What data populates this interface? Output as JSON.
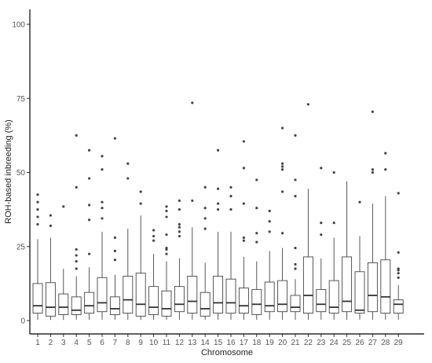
{
  "chart_data": {
    "type": "boxplot",
    "title": "",
    "xlabel": "Chromosome",
    "ylabel": "ROH-based inbreeding (%)",
    "ylim": [
      0,
      100
    ],
    "yticks": [
      0,
      25,
      50,
      75,
      100
    ],
    "grid": false,
    "colors": {
      "box_stroke": "#444444",
      "box_fill": "#ffffff",
      "median": "#333333",
      "outlier": "#444444",
      "axis": "#000000"
    },
    "categories": [
      "1",
      "2",
      "3",
      "4",
      "5",
      "6",
      "7",
      "8",
      "9",
      "10",
      "11",
      "12",
      "13",
      "14",
      "15",
      "16",
      "17",
      "18",
      "19",
      "20",
      "21",
      "22",
      "23",
      "24",
      "25",
      "26",
      "27",
      "28",
      "29"
    ],
    "boxes": [
      {
        "q1": 2.5,
        "median": 5.0,
        "q3": 12.5,
        "whisker_low": 0.3,
        "whisker_high": 27.5,
        "outliers": [
          32.5,
          35.0,
          37.5,
          40.0,
          42.5
        ]
      },
      {
        "q1": 1.5,
        "median": 4.5,
        "q3": 12.8,
        "whisker_low": 0.2,
        "whisker_high": 28.0,
        "outliers": [
          32.0,
          35.5
        ]
      },
      {
        "q1": 2.0,
        "median": 4.5,
        "q3": 9.0,
        "whisker_low": 0.2,
        "whisker_high": 17.5,
        "outliers": [
          38.5
        ]
      },
      {
        "q1": 2.0,
        "median": 3.5,
        "q3": 8.0,
        "whisker_low": 0.3,
        "whisker_high": 15.0,
        "outliers": [
          17.5,
          20.0,
          22.0,
          24.0,
          45.0,
          62.5
        ]
      },
      {
        "q1": 2.5,
        "median": 5.0,
        "q3": 9.5,
        "whisker_low": 0.3,
        "whisker_high": 18.0,
        "outliers": [
          22.5,
          34.0,
          39.0,
          48.0,
          57.5
        ]
      },
      {
        "q1": 3.0,
        "median": 6.0,
        "q3": 14.5,
        "whisker_low": 0.3,
        "whisker_high": 30.0,
        "outliers": [
          34.5,
          38.0,
          40.0,
          51.0,
          55.5
        ]
      },
      {
        "q1": 2.0,
        "median": 4.0,
        "q3": 8.0,
        "whisker_low": 0.3,
        "whisker_high": 15.5,
        "outliers": [
          20.5,
          23.5,
          28.0,
          61.5
        ]
      },
      {
        "q1": 2.5,
        "median": 7.0,
        "q3": 15.0,
        "whisker_low": 0.3,
        "whisker_high": 31.0,
        "outliers": [
          48.0,
          53.0
        ]
      },
      {
        "q1": 1.5,
        "median": 5.5,
        "q3": 16.0,
        "whisker_low": 0.2,
        "whisker_high": 35.5,
        "outliers": [
          39.5,
          43.5
        ]
      },
      {
        "q1": 2.0,
        "median": 4.5,
        "q3": 11.5,
        "whisker_low": 0.3,
        "whisker_high": 22.5,
        "outliers": [
          27.0,
          28.5,
          30.5
        ]
      },
      {
        "q1": 1.5,
        "median": 4.0,
        "q3": 10.0,
        "whisker_low": 0.3,
        "whisker_high": 20.0,
        "outliers": [
          22.5,
          24.0,
          24.5,
          29.0,
          35.0,
          37.0,
          38.5
        ]
      },
      {
        "q1": 3.0,
        "median": 5.5,
        "q3": 11.5,
        "whisker_low": 0.3,
        "whisker_high": 21.0,
        "outliers": [
          28.5,
          30.0,
          31.5,
          32.5,
          37.5,
          40.5
        ]
      },
      {
        "q1": 2.5,
        "median": 6.5,
        "q3": 15.0,
        "whisker_low": 0.3,
        "whisker_high": 31.5,
        "outliers": [
          40.5,
          73.5
        ]
      },
      {
        "q1": 1.5,
        "median": 4.0,
        "q3": 9.5,
        "whisker_low": 0.3,
        "whisker_high": 19.5,
        "outliers": [
          31.0,
          34.5,
          38.0,
          45.0
        ]
      },
      {
        "q1": 2.5,
        "median": 6.0,
        "q3": 15.0,
        "whisker_low": 0.3,
        "whisker_high": 30.0,
        "outliers": [
          37.5,
          39.5,
          44.5,
          57.5
        ]
      },
      {
        "q1": 2.5,
        "median": 6.0,
        "q3": 14.0,
        "whisker_low": 0.3,
        "whisker_high": 30.0,
        "outliers": [
          37.5,
          42.0,
          45.0
        ]
      },
      {
        "q1": 2.5,
        "median": 5.0,
        "q3": 11.0,
        "whisker_low": 0.3,
        "whisker_high": 21.5,
        "outliers": [
          27.0,
          28.0,
          39.5,
          51.5,
          60.5
        ]
      },
      {
        "q1": 2.0,
        "median": 5.5,
        "q3": 10.5,
        "whisker_low": 0.3,
        "whisker_high": 20.0,
        "outliers": [
          26.5,
          29.5,
          38.0,
          47.5
        ]
      },
      {
        "q1": 3.0,
        "median": 5.0,
        "q3": 13.0,
        "whisker_low": 0.3,
        "whisker_high": 23.5,
        "outliers": [
          30.0,
          33.5,
          37.0
        ]
      },
      {
        "q1": 3.0,
        "median": 5.5,
        "q3": 13.5,
        "whisker_low": 0.3,
        "whisker_high": 24.5,
        "outliers": [
          29.5,
          43.5,
          51.0,
          52.0,
          53.0,
          65.0
        ]
      },
      {
        "q1": 3.0,
        "median": 4.5,
        "q3": 8.5,
        "whisker_low": 0.3,
        "whisker_high": 14.0,
        "outliers": [
          17.5,
          19.0,
          24.5,
          42.0,
          47.5,
          62.5
        ]
      },
      {
        "q1": 2.5,
        "median": 8.5,
        "q3": 21.5,
        "whisker_low": 0.3,
        "whisker_high": 44.5,
        "outliers": [
          73.0
        ]
      },
      {
        "q1": 3.0,
        "median": 5.5,
        "q3": 10.5,
        "whisker_low": 0.3,
        "whisker_high": 21.0,
        "outliers": [
          29.0,
          33.0,
          51.5
        ]
      },
      {
        "q1": 2.5,
        "median": 4.5,
        "q3": 13.5,
        "whisker_low": 0.3,
        "whisker_high": 28.0,
        "outliers": [
          33.0,
          50.0
        ]
      },
      {
        "q1": 3.0,
        "median": 6.5,
        "q3": 21.5,
        "whisker_low": 0.3,
        "whisker_high": 47.0,
        "outliers": []
      },
      {
        "q1": 2.5,
        "median": 3.5,
        "q3": 16.5,
        "whisker_low": 0.3,
        "whisker_high": 28.5,
        "outliers": [
          40.0
        ]
      },
      {
        "q1": 3.0,
        "median": 8.5,
        "q3": 19.5,
        "whisker_low": 0.3,
        "whisker_high": 39.5,
        "outliers": [
          50.0,
          51.0,
          70.5
        ]
      },
      {
        "q1": 2.5,
        "median": 8.0,
        "q3": 20.5,
        "whisker_low": 0.3,
        "whisker_high": 42.0,
        "outliers": [
          51.0,
          56.5
        ]
      },
      {
        "q1": 2.5,
        "median": 5.5,
        "q3": 7.0,
        "whisker_low": 0.3,
        "whisker_high": 12.0,
        "outliers": [
          14.5,
          16.0,
          17.0,
          17.5,
          23.0,
          43.0
        ]
      }
    ]
  }
}
